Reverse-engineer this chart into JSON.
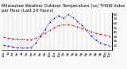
{
  "title": "Milwaukee Weather Outdoor Temperature (vs) THSW Index per Hour (Last 24 Hours)",
  "hours": [
    0,
    1,
    2,
    3,
    4,
    5,
    6,
    7,
    8,
    9,
    10,
    11,
    12,
    13,
    14,
    15,
    16,
    17,
    18,
    19,
    20,
    21,
    22,
    23
  ],
  "temp": [
    28,
    26,
    25,
    24,
    24,
    23,
    23,
    26,
    32,
    38,
    44,
    50,
    55,
    57,
    57,
    55,
    52,
    49,
    45,
    41,
    38,
    35,
    33,
    31
  ],
  "thsw": [
    10,
    8,
    6,
    5,
    4,
    4,
    5,
    15,
    30,
    46,
    62,
    72,
    78,
    72,
    80,
    74,
    65,
    56,
    44,
    32,
    22,
    16,
    12,
    9
  ],
  "temp_color": "#cc0000",
  "thsw_color": "#0000cc",
  "bg_color": "#f8f8f8",
  "grid_color": "#999999",
  "ylim": [
    0,
    85
  ],
  "ytick_values": [
    10,
    20,
    30,
    40,
    50,
    60,
    70,
    80
  ],
  "ytick_labels": [
    "10",
    "20",
    "30",
    "40",
    "50",
    "60",
    "70",
    "80"
  ],
  "title_fontsize": 3.8,
  "tick_fontsize": 3.0,
  "line_width": 0.7,
  "marker_size": 1.0,
  "figsize": [
    1.6,
    0.87
  ],
  "dpi": 100
}
